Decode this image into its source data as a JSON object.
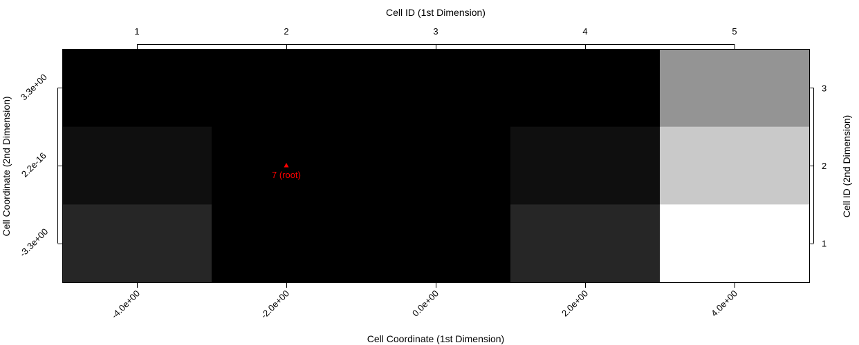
{
  "chart_data": {
    "type": "heatmap",
    "title": "",
    "top_axis_title": "Cell ID (1st Dimension)",
    "bottom_axis_title": "Cell Coordinate (1st Dimension)",
    "left_axis_title": "Cell Coordinate (2nd Dimension)",
    "right_axis_title": "Cell ID (2nd Dimension)",
    "x_ids": [
      "1",
      "2",
      "3",
      "4",
      "5"
    ],
    "x_coords": [
      "-4.0e+00",
      "-2.0e+00",
      "0.0e+00",
      "2.0e+00",
      "4.0e+00"
    ],
    "y_ids": [
      "1",
      "2",
      "3"
    ],
    "y_coords": [
      "-3.3e+00",
      "2.2e-16",
      "3.3e+00"
    ],
    "cells": [
      {
        "x_id": 1,
        "y_id": 3,
        "gray": 0.0
      },
      {
        "x_id": 2,
        "y_id": 3,
        "gray": 0.0
      },
      {
        "x_id": 3,
        "y_id": 3,
        "gray": 0.0
      },
      {
        "x_id": 4,
        "y_id": 3,
        "gray": 0.0
      },
      {
        "x_id": 5,
        "y_id": 3,
        "gray": 0.58
      },
      {
        "x_id": 1,
        "y_id": 2,
        "gray": 0.06
      },
      {
        "x_id": 2,
        "y_id": 2,
        "gray": 0.0
      },
      {
        "x_id": 3,
        "y_id": 2,
        "gray": 0.0
      },
      {
        "x_id": 4,
        "y_id": 2,
        "gray": 0.06
      },
      {
        "x_id": 5,
        "y_id": 2,
        "gray": 0.79
      },
      {
        "x_id": 1,
        "y_id": 1,
        "gray": 0.15
      },
      {
        "x_id": 2,
        "y_id": 1,
        "gray": 0.0
      },
      {
        "x_id": 3,
        "y_id": 1,
        "gray": 0.0
      },
      {
        "x_id": 4,
        "y_id": 1,
        "gray": 0.15
      },
      {
        "x_id": 5,
        "y_id": 1,
        "gray": 1.0
      }
    ],
    "annotations": [
      {
        "x_id": 2,
        "y_id": 2,
        "marker": "triangle",
        "label": "7 (root)",
        "color": "#ff0000"
      }
    ]
  }
}
